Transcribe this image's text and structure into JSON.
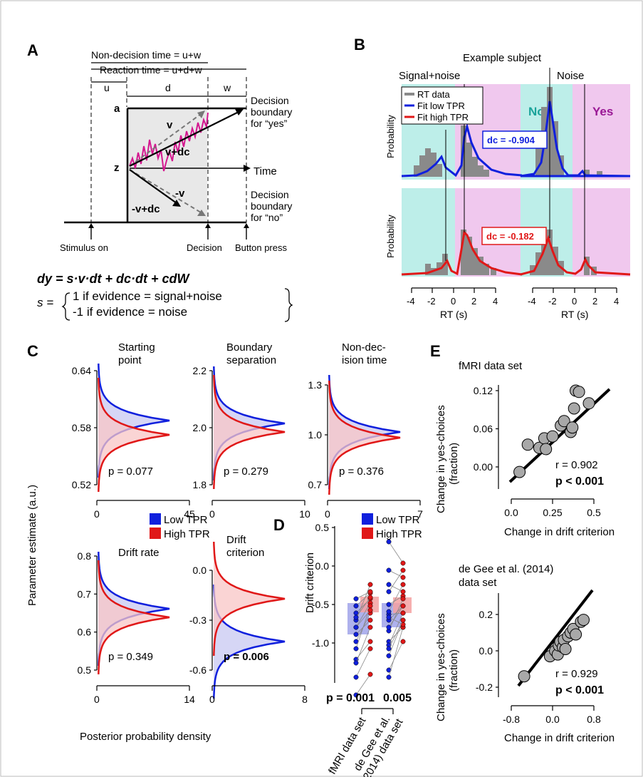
{
  "panel_labels": {
    "A": "A",
    "B": "B",
    "C": "C",
    "D": "D",
    "E": "E"
  },
  "panel_a": {
    "non_decision": "Non-decision time = u+w",
    "reaction": "Reaction time = u+d+w",
    "u": "u",
    "d": "d",
    "w": "w",
    "a": "a",
    "z": "z",
    "time": "Time",
    "v": "v",
    "v_dc": "v+dc",
    "neg_v": "-v",
    "neg_v_dc": "-v+dc",
    "yes_boundary": [
      "Decision",
      "boundary",
      "for “yes”"
    ],
    "no_boundary": [
      "Decision",
      "boundary",
      "for “no”"
    ],
    "stimulus_on": "Stimulus on",
    "decision": "Decision",
    "button_press": "Button press",
    "equation": "dy = s·v·dt + dc·dt + cdW",
    "s_label": "s =",
    "s_case1": "1 if evidence = signal+noise",
    "s_case2": "-1 if evidence = noise"
  },
  "panel_b": {
    "title": "Example subject",
    "col1": "Signal+noise",
    "col2": "Noise",
    "no": "No",
    "yes": "Yes",
    "legend": [
      "RT data",
      "Fit low TPR",
      "Fit high TPR"
    ],
    "ylabel": "Probability",
    "dc_low": "dc = -0.904",
    "dc_high": "dc = -0.182",
    "xlabel": "RT (s)",
    "xticks": [
      "-4",
      "-2",
      "0",
      "2",
      "4"
    ],
    "colors": {
      "cyan": "#bdeee9",
      "pink": "#f0c8ee",
      "blue": "#1020dd",
      "red": "#e01818",
      "gray": "#8a8a8a"
    }
  },
  "panel_c": {
    "ylabel": "Parameter estimate (a.u.)",
    "xlabel": "Posterior probability density",
    "legend": [
      "Low TPR",
      "High TPR"
    ],
    "plots": [
      {
        "title": [
          "Starting",
          "point"
        ],
        "yticks": [
          "0.64",
          "0.58",
          "0.52"
        ],
        "xticks": [
          "0",
          "45"
        ],
        "p": "p = 0.077",
        "bold": false
      },
      {
        "title": [
          "Boundary",
          "separation"
        ],
        "yticks": [
          "2.2",
          "2.0",
          "1.8"
        ],
        "xticks": [
          "0",
          "10"
        ],
        "p": "p = 0.279",
        "bold": false
      },
      {
        "title": [
          "Non-dec-",
          "ision time"
        ],
        "yticks": [
          "1.3",
          "1.0",
          "0.7"
        ],
        "xticks": [
          "0",
          "7"
        ],
        "p": "p = 0.376",
        "bold": false
      },
      {
        "title": [
          "Drift rate"
        ],
        "yticks": [
          "0.8",
          "0.7",
          "0.6",
          "0.5"
        ],
        "xticks": [
          "0",
          "14"
        ],
        "p": "p = 0.349",
        "bold": false
      },
      {
        "title": [
          "Drift",
          "criterion"
        ],
        "yticks": [
          "0.0",
          "-0.3",
          "-0.6"
        ],
        "xticks": [
          "0",
          "8"
        ],
        "p": "p = 0.006",
        "bold": true
      }
    ]
  },
  "panel_d": {
    "ylabel": "Drift criterion",
    "legend": [
      "Low TPR",
      "High TPR"
    ],
    "yticks": [
      "0.5",
      "0.0",
      "-0.5",
      "-1.0"
    ],
    "p1": "p = 0.001",
    "p2": "0.005",
    "xcat1": "fMRI data set",
    "xcat2": [
      "de Gee et al.",
      "(2014) data set"
    ]
  },
  "panel_e": {
    "top_title": "fMRI data set",
    "top_ylabel": [
      "Change in yes-choices",
      "(fraction)"
    ],
    "top_yticks": [
      "0.12",
      "0.06",
      "0.00"
    ],
    "top_xticks": [
      "0.0",
      "0.25",
      "0.5"
    ],
    "top_r": "r = 0.902",
    "top_p": "p < 0.001",
    "top_xlabel": "Change in drift criterion",
    "bot_title": [
      "de Gee et al. (2014)",
      "data set"
    ],
    "bot_ylabel": [
      "Change in yes-choices",
      "(fraction)"
    ],
    "bot_yticks": [
      "0.2",
      "0.0",
      "-0.2"
    ],
    "bot_xticks": [
      "-0.8",
      "0.0",
      "0.8"
    ],
    "bot_r": "r = 0.929",
    "bot_p": "p < 0.001",
    "bot_xlabel": "Change in drift criterion",
    "top_points": [
      [
        0.05,
        -0.008
      ],
      [
        0.1,
        0.035
      ],
      [
        0.17,
        0.03
      ],
      [
        0.2,
        0.045
      ],
      [
        0.21,
        0.028
      ],
      [
        0.25,
        0.048
      ],
      [
        0.3,
        0.065
      ],
      [
        0.32,
        0.072
      ],
      [
        0.36,
        0.055
      ],
      [
        0.37,
        0.062
      ],
      [
        0.38,
        0.092
      ],
      [
        0.39,
        0.12
      ],
      [
        0.41,
        0.118
      ],
      [
        0.47,
        0.1
      ]
    ],
    "bot_points": [
      [
        -0.55,
        -0.14
      ],
      [
        -0.05,
        -0.03
      ],
      [
        0.05,
        0.0
      ],
      [
        0.1,
        -0.02
      ],
      [
        0.12,
        0.03
      ],
      [
        0.15,
        0.05
      ],
      [
        0.2,
        0.02
      ],
      [
        0.22,
        0.06
      ],
      [
        0.25,
        0.01
      ],
      [
        0.3,
        0.08
      ],
      [
        0.35,
        0.1
      ],
      [
        0.4,
        0.12
      ],
      [
        0.45,
        0.09
      ],
      [
        0.55,
        0.16
      ],
      [
        0.6,
        0.17
      ]
    ]
  }
}
